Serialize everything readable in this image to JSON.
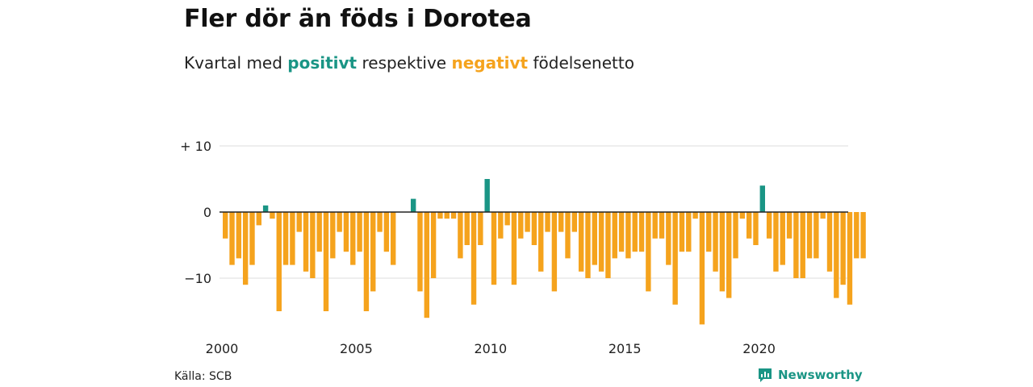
{
  "header": {
    "title": "Fler dör än föds i Dorotea",
    "subtitle_part1": "Kvartal med ",
    "subtitle_positive": "positivt",
    "subtitle_part2": " respektive ",
    "subtitle_negative": "negativt",
    "subtitle_part3": " födelsenetto"
  },
  "footer": {
    "source": "Källa: SCB",
    "brand": "Newsworthy",
    "brand_icon": "newsworthy-logo-icon"
  },
  "colors": {
    "positive": "#1a9585",
    "negative": "#f5a31d",
    "grid": "#dddddd",
    "zero_line": "#222222"
  },
  "chart_data": {
    "type": "bar",
    "x_unit": "quarter",
    "start_year": 2000,
    "start_quarter": 1,
    "values": [
      -4,
      -8,
      -7,
      -11,
      -8,
      -2,
      1,
      -1,
      -15,
      -8,
      -8,
      -3,
      -9,
      -10,
      -6,
      -15,
      -7,
      -3,
      -6,
      -8,
      -6,
      -15,
      -12,
      -3,
      -6,
      -8,
      0,
      0,
      2,
      -12,
      -16,
      -10,
      -1,
      -1,
      -1,
      -7,
      -5,
      -14,
      -5,
      5,
      -11,
      -4,
      -2,
      -11,
      -4,
      -3,
      -5,
      -9,
      -3,
      -12,
      -3,
      -7,
      -3,
      -9,
      -10,
      -8,
      -9,
      -10,
      -7,
      -6,
      -7,
      -6,
      -6,
      -12,
      -4,
      -4,
      -8,
      -14,
      -6,
      -6,
      -1,
      -17,
      -6,
      -9,
      -12,
      -13,
      -7,
      -1,
      -4,
      -5,
      4,
      -4,
      -9,
      -8,
      -4,
      -10,
      -10,
      -7,
      -7,
      -1,
      -9,
      -13,
      -11,
      -14,
      -7,
      -7
    ],
    "ylim": [
      -18,
      10
    ],
    "y_ticks": [
      10,
      0,
      -10
    ],
    "y_tick_labels": [
      "+ 10",
      "0",
      "−10"
    ],
    "x_ticks": [
      2000,
      2005,
      2010,
      2015,
      2020
    ],
    "x_tick_labels": [
      "2000",
      "2005",
      "2010",
      "2015",
      "2020"
    ],
    "grid": true,
    "legend": "none"
  }
}
